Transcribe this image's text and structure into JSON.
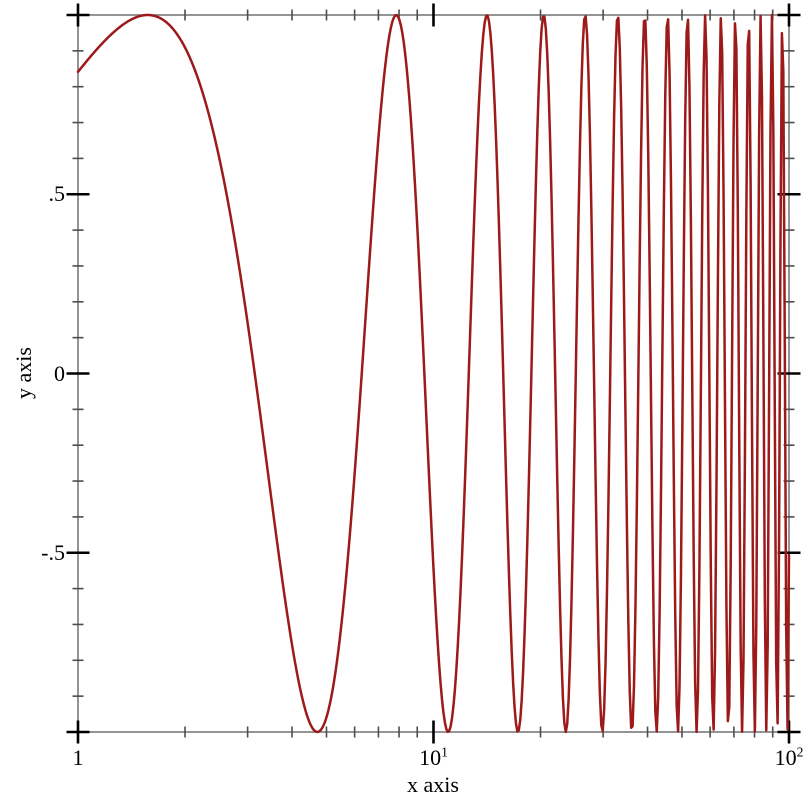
{
  "chart_data": {
    "type": "line",
    "title": "",
    "xlabel": "x axis",
    "ylabel": "y axis",
    "x_scale": "log10",
    "x_range": [
      1,
      100
    ],
    "y_range": [
      -1,
      1
    ],
    "grid": false,
    "legend": "none",
    "frame": "full-box-with-mirrored-ticks",
    "background_color": "#ffffff",
    "axis_color": "#7a7a7a",
    "tick_major_color": "#000000",
    "tick_minor_color": "#4d4d4d",
    "label_color": "#000000",
    "series": [
      {
        "name": "sin(x)",
        "function": "sin",
        "sampling": "uniform-log10",
        "samples": 500,
        "color": "#9c1a1a",
        "stroke_width": 2.5
      }
    ],
    "x_ticks": {
      "major": [
        {
          "value": 1,
          "base": "1",
          "exp": ""
        },
        {
          "value": 10,
          "base": "10",
          "exp": "1"
        },
        {
          "value": 100,
          "base": "10",
          "exp": "2"
        }
      ],
      "minor": [
        2,
        3,
        4,
        5,
        6,
        7,
        8,
        9,
        20,
        30,
        40,
        50,
        60,
        70,
        80,
        90
      ]
    },
    "y_ticks": {
      "major": [
        {
          "value": -1,
          "label": ""
        },
        {
          "value": -0.5,
          "label": "-.5"
        },
        {
          "value": 0,
          "label": "0"
        },
        {
          "value": 0.5,
          "label": ".5"
        },
        {
          "value": 1,
          "label": ""
        }
      ],
      "minor": [
        -0.9,
        -0.8,
        -0.7,
        -0.6,
        -0.4,
        -0.3,
        -0.2,
        -0.1,
        0.1,
        0.2,
        0.3,
        0.4,
        0.6,
        0.7,
        0.8,
        0.9
      ]
    }
  }
}
